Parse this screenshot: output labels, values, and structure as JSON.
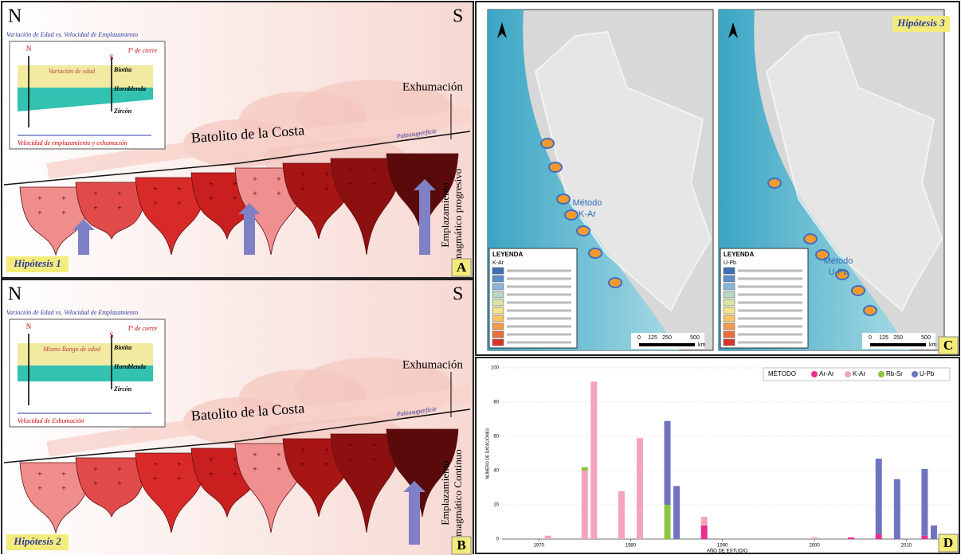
{
  "panel_a": {
    "north": "N",
    "south": "S",
    "inset_title": "Variación de Edad vs. Velocidad de Emplazamiento",
    "inset_n": "N",
    "inset_s": "S",
    "closure": "Tº de cierre",
    "age_note": "Variación de edad",
    "biotite": "Biotita",
    "hornblende": "Hornblenda",
    "zircon": "Zircón",
    "inset_axis": "Velocidad de emplazamiento y exhumación",
    "exhumation": "Exhumación",
    "batholith": "Batolito de la Costa",
    "paleosurface": "Paleosuperficie",
    "emplacement": [
      "Emplazamiento",
      "magmático progresivo"
    ],
    "hypothesis": "Hipótesis 1",
    "panel_label": "A"
  },
  "panel_b": {
    "north": "N",
    "south": "S",
    "inset_title": "Variación de Edad vs. Velocidad de Emplazamiento",
    "inset_n": "N",
    "inset_s": "S",
    "closure": "Tº de cierre",
    "age_note": "Mismo Rango de edad",
    "biotite": "Biotita",
    "hornblende": "Hornblenda",
    "zircon": "Zircón",
    "inset_axis": "Velocidad de Exhumación",
    "exhumation": "Exhumación",
    "batholith": "Batolito de la Costa",
    "paleosurface": "Paleosuperficie",
    "emplacement": [
      "Emplazamiento",
      "magmático Continuo"
    ],
    "hypothesis": "Hipótesis 2",
    "panel_label": "B"
  },
  "panel_c": {
    "hypothesis": "Hipótesis 3",
    "method_1": [
      "Método",
      "K-Ar"
    ],
    "method_2": [
      "Método",
      "U-Pb"
    ],
    "legend_title": "LEYENDA",
    "legend_1": "K-Ar",
    "legend_2": "U-Pb",
    "scale_1": [
      "0",
      "125",
      "250",
      "500"
    ],
    "scale_2": [
      "0",
      "125",
      "250",
      "500"
    ],
    "scale_unit": "km",
    "panel_label": "C"
  },
  "chart_data": {
    "type": "bar",
    "stacked": true,
    "x_label": "AÑO DE ESTUDIO",
    "y_label": "NÚMERO DE DATACIONES",
    "legend_title": "MÉTODO",
    "legend_position": "upper right",
    "panel_label": "D",
    "x": [
      1971,
      1975,
      1976,
      1979,
      1981,
      1984,
      1985,
      1988,
      2000,
      2004,
      2007,
      2009,
      2012,
      2013
    ],
    "series": [
      {
        "name": "Ar-Ar",
        "color": "#e8308f",
        "values": [
          0,
          0,
          0,
          0,
          0,
          0,
          0,
          8,
          0,
          1,
          3,
          0,
          2,
          0
        ]
      },
      {
        "name": "K-Ar",
        "color": "#f4a3bc",
        "values": [
          2,
          40,
          92,
          28,
          59,
          0,
          0,
          5,
          1,
          0,
          0,
          0,
          0,
          0
        ]
      },
      {
        "name": "Rb-Sr",
        "color": "#8cc63f",
        "values": [
          0,
          2,
          0,
          0,
          0,
          20,
          0,
          0,
          0,
          0,
          0,
          0,
          0,
          0
        ]
      },
      {
        "name": "U-Pb",
        "color": "#6f74c2",
        "values": [
          0,
          0,
          0,
          0,
          0,
          49,
          31,
          0,
          0,
          0,
          44,
          35,
          39,
          8
        ]
      }
    ],
    "xlim": [
      1966,
      2015
    ],
    "xticks": [
      1970,
      1980,
      1990,
      2000,
      2010
    ],
    "ylim": [
      0,
      100
    ],
    "yticks": [
      0,
      20,
      40,
      60,
      80,
      100
    ],
    "grid": true
  }
}
